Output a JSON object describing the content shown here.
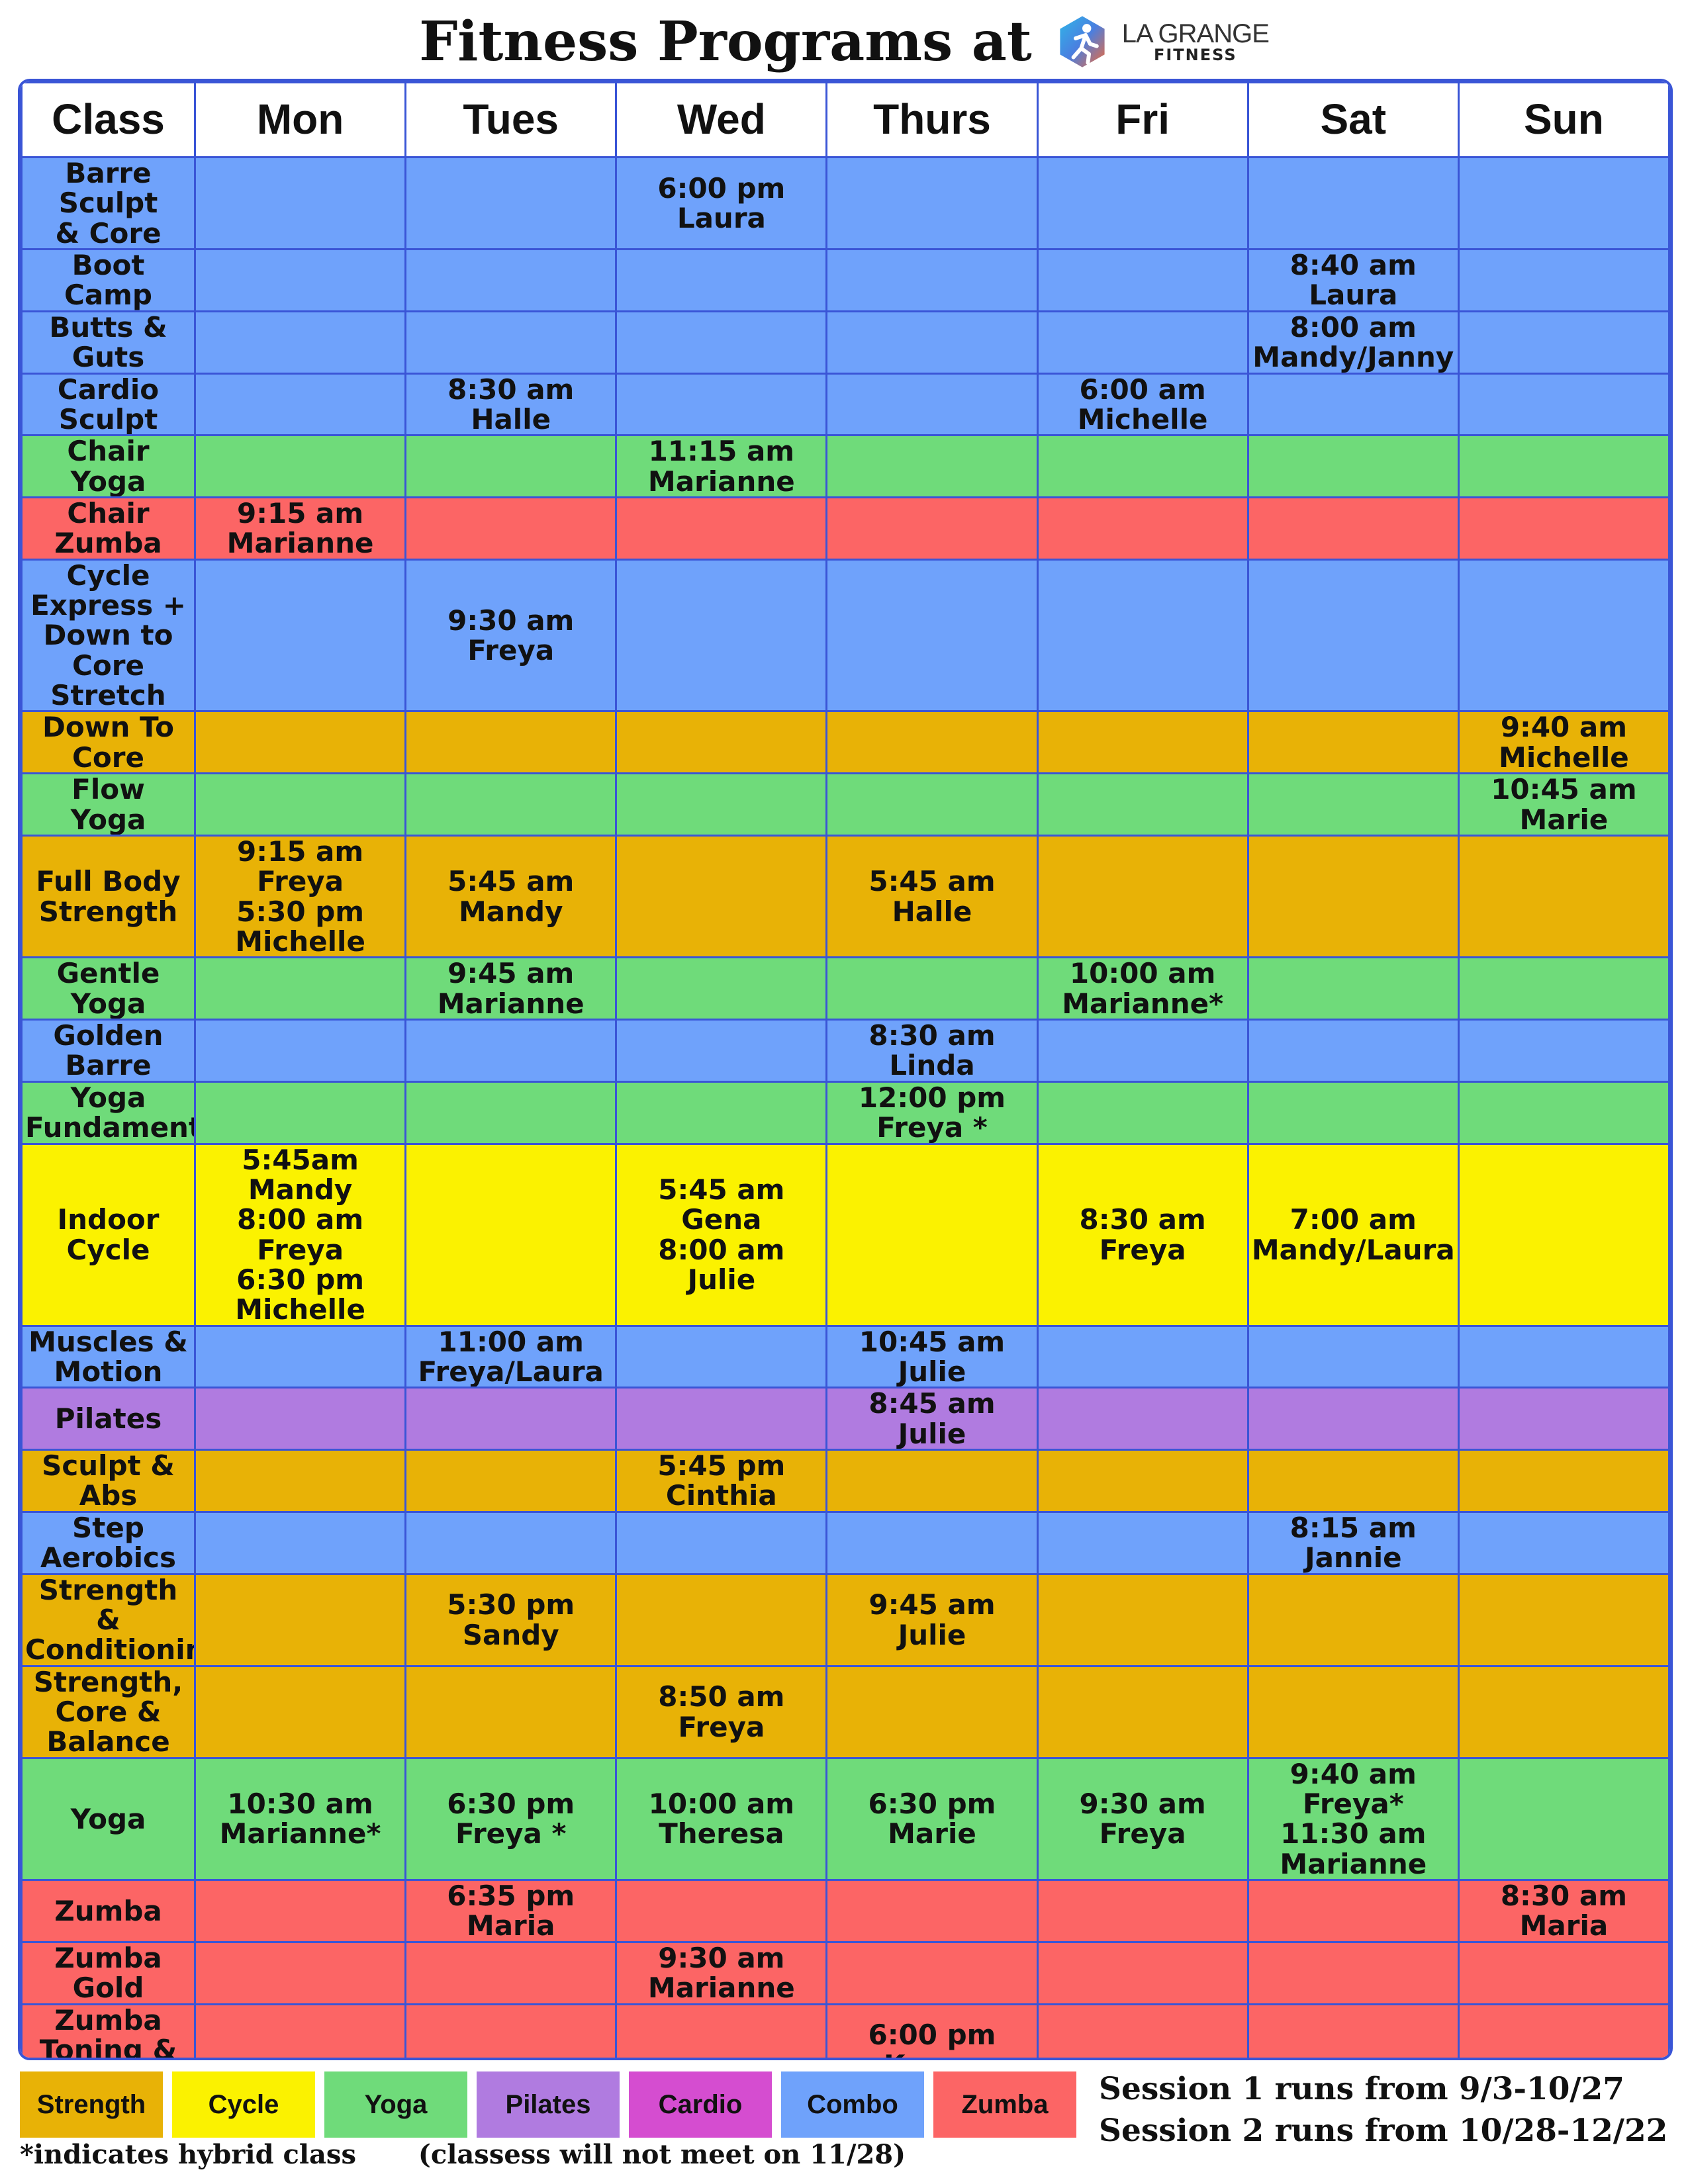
{
  "title": "Fitness Programs at",
  "logo": {
    "line1": "LA GRANGE",
    "line2": "FITNESS"
  },
  "headers": [
    "Class",
    "Mon",
    "Tues",
    "Wed",
    "Thurs",
    "Fri",
    "Sat",
    "Sun"
  ],
  "rows": [
    {
      "cls": [
        "Barre Sculpt",
        "& Core"
      ],
      "size": "small",
      "cat": "combo",
      "cells": [
        [],
        [],
        [
          "6:00 pm",
          "Laura"
        ],
        [],
        [],
        [],
        []
      ]
    },
    {
      "cls": [
        "Boot",
        "Camp"
      ],
      "cat": "combo",
      "cells": [
        [],
        [],
        [],
        [],
        [],
        [
          "8:40 am",
          "Laura"
        ],
        []
      ]
    },
    {
      "cls": [
        "Butts &",
        "Guts"
      ],
      "cat": "combo",
      "cells": [
        [],
        [],
        [],
        [],
        [],
        [
          "8:00 am",
          "Mandy/Janny"
        ],
        []
      ]
    },
    {
      "cls": [
        "Cardio",
        "Sculpt"
      ],
      "cat": "combo",
      "cells": [
        [],
        [
          "8:30 am",
          "Halle"
        ],
        [],
        [],
        [
          "6:00 am",
          "Michelle"
        ],
        [],
        []
      ]
    },
    {
      "cls": [
        "Chair",
        "Yoga"
      ],
      "cat": "yoga",
      "cells": [
        [],
        [],
        [
          "11:15 am",
          "Marianne"
        ],
        [],
        [],
        [],
        []
      ]
    },
    {
      "cls": [
        "Chair",
        "Zumba"
      ],
      "cat": "zumba",
      "cells": [
        [
          "9:15 am",
          "Marianne"
        ],
        [],
        [],
        [],
        [],
        [],
        []
      ]
    },
    {
      "cls": [
        "Cycle Express +",
        "Down to Core",
        "Stretch"
      ],
      "size": "tiny",
      "cat": "combo",
      "cells": [
        [],
        [
          "9:30 am",
          "Freya"
        ],
        [],
        [],
        [],
        [],
        []
      ]
    },
    {
      "cls": [
        "Down To",
        "Core"
      ],
      "cat": "strength",
      "cells": [
        [],
        [],
        [],
        [],
        [],
        [],
        [
          "9:40 am",
          "Michelle"
        ]
      ]
    },
    {
      "cls": [
        "Flow",
        "Yoga"
      ],
      "cat": "yoga",
      "cells": [
        [],
        [],
        [],
        [],
        [],
        [],
        [
          "10:45 am",
          "Marie"
        ]
      ]
    },
    {
      "cls": [
        "Full Body",
        "Strength"
      ],
      "cat": "strength",
      "cells": [
        [
          "9:15 am Freya",
          "5:30 pm Michelle"
        ],
        [
          "5:45 am",
          "Mandy"
        ],
        [],
        [
          "5:45 am",
          "Halle"
        ],
        [],
        [],
        []
      ]
    },
    {
      "cls": [
        "Gentle",
        "Yoga"
      ],
      "cat": "yoga",
      "cells": [
        [],
        [
          "9:45 am",
          "Marianne"
        ],
        [],
        [],
        [
          "10:00 am",
          "Marianne*"
        ],
        [],
        []
      ]
    },
    {
      "cls": [
        "Golden",
        "Barre"
      ],
      "cat": "combo",
      "cells": [
        [],
        [],
        [],
        [
          "8:30 am",
          "Linda"
        ],
        [],
        [],
        []
      ]
    },
    {
      "cls": [
        "Yoga",
        "Fundamentals"
      ],
      "size": "small",
      "cat": "yoga",
      "cells": [
        [],
        [],
        [],
        [
          "12:00 pm",
          "Freya *"
        ],
        [],
        [],
        []
      ]
    },
    {
      "cls": [
        "Indoor",
        "Cycle"
      ],
      "cat": "cycle",
      "cells": [
        [
          "5:45am Mandy",
          "8:00 am Freya",
          "6:30 pm Michelle"
        ],
        [],
        [
          "5:45 am Gena",
          "8:00 am Julie"
        ],
        [],
        [
          "8:30 am",
          "Freya"
        ],
        [
          "7:00 am",
          "Mandy/Laura"
        ],
        []
      ]
    },
    {
      "cls": [
        "Muscles &",
        "Motion"
      ],
      "cat": "combo",
      "cells": [
        [],
        [
          "11:00 am",
          "Freya/Laura"
        ],
        [],
        [
          "10:45 am",
          "Julie"
        ],
        [],
        [],
        []
      ]
    },
    {
      "cls": [
        "Pilates"
      ],
      "cat": "pilates",
      "cells": [
        [],
        [],
        [],
        [
          "8:45 am",
          "Julie"
        ],
        [],
        [],
        []
      ]
    },
    {
      "cls": [
        "Sculpt &",
        "Abs"
      ],
      "cat": "strength",
      "cells": [
        [],
        [],
        [
          "5:45 pm",
          "Cinthia"
        ],
        [],
        [],
        [],
        []
      ]
    },
    {
      "cls": [
        "Step",
        "Aerobics"
      ],
      "cat": "combo",
      "cells": [
        [],
        [],
        [],
        [],
        [],
        [
          "8:15 am",
          "Jannie"
        ],
        []
      ]
    },
    {
      "cls": [
        "Strength &",
        "Conditioning"
      ],
      "size": "small",
      "cat": "strength",
      "cells": [
        [],
        [
          "5:30 pm",
          "Sandy"
        ],
        [],
        [
          "9:45 am",
          "Julie"
        ],
        [],
        [],
        []
      ]
    },
    {
      "cls": [
        "Strength,",
        "Core &",
        "Balance"
      ],
      "size": "small",
      "cat": "strength",
      "cells": [
        [],
        [],
        [
          "8:50 am",
          "Freya"
        ],
        [],
        [],
        [],
        []
      ]
    },
    {
      "cls": [
        "Yoga"
      ],
      "cat": "yoga",
      "cells": [
        [
          "10:30 am",
          "Marianne*"
        ],
        [
          "6:30 pm",
          "Freya *"
        ],
        [
          "10:00 am",
          "Theresa"
        ],
        [
          "6:30 pm",
          "Marie"
        ],
        [
          "9:30 am",
          "Freya"
        ],
        [
          "9:40 am Freya*",
          "11:30 am Marianne"
        ],
        []
      ]
    },
    {
      "cls": [
        "Zumba"
      ],
      "cat": "zumba",
      "cells": [
        [],
        [
          "6:35 pm",
          "Maria"
        ],
        [],
        [],
        [],
        [],
        [
          "8:30 am",
          "Maria"
        ]
      ]
    },
    {
      "cls": [
        "Zumba",
        "Gold"
      ],
      "cat": "zumba",
      "cells": [
        [],
        [],
        [
          "9:30 am",
          "Marianne"
        ],
        [],
        [],
        [],
        []
      ]
    },
    {
      "cls": [
        "Zumba",
        "Toning & Abs"
      ],
      "size": "small",
      "cat": "zumba",
      "cells": [
        [],
        [],
        [],
        [
          "6:00 pm",
          "Kenya"
        ],
        [],
        [],
        []
      ]
    }
  ],
  "legend": [
    {
      "label": "Strength",
      "cat": "strength"
    },
    {
      "label": "Cycle",
      "cat": "cycle"
    },
    {
      "label": "Yoga",
      "cat": "yoga"
    },
    {
      "label": "Pilates",
      "cat": "pilates"
    },
    {
      "label": "Cardio",
      "cat": "cardio"
    },
    {
      "label": "Combo",
      "cat": "combo"
    },
    {
      "label": "Zumba",
      "cat": "zumba"
    }
  ],
  "sessions": [
    "Session 1 runs from 9/3-10/27",
    "Session 2 runs from 10/28-12/22"
  ],
  "footnotes": [
    "*indicates hybrid class",
    "(classess will not meet on 11/28)"
  ],
  "colors": {
    "strength": "#e8b206",
    "cycle": "#fbf200",
    "yoga": "#6fdb7a",
    "pilates": "#b07be0",
    "cardio": "#d54dd0",
    "combo": "#6fa2fb",
    "zumba": "#fc6565",
    "grid": "#3a55d6"
  }
}
